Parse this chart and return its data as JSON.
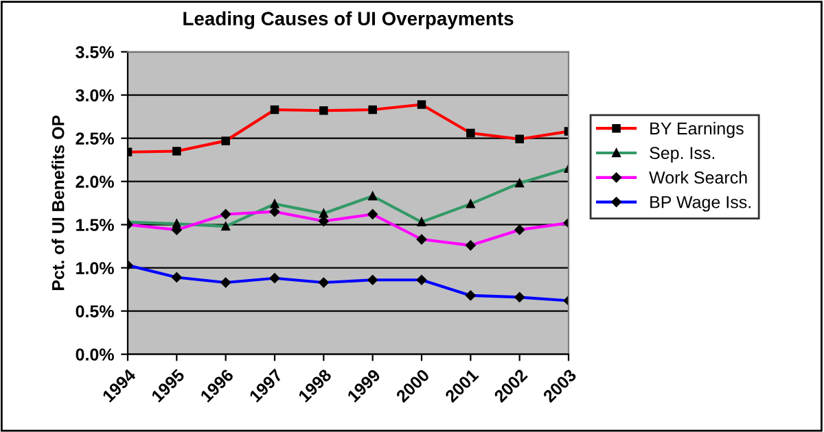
{
  "chart_data": {
    "type": "line",
    "title": "Leading Causes of UI Overpayments",
    "ylabel": "Pct. of UI Benefits OP",
    "categories": [
      "1994",
      "1995",
      "1996",
      "1997",
      "1998",
      "1999",
      "2000",
      "2001",
      "2002",
      "2003"
    ],
    "series": [
      {
        "name": "BY Earnings",
        "color": "#ff0000",
        "marker": "square",
        "values": [
          2.34,
          2.35,
          2.47,
          2.83,
          2.82,
          2.83,
          2.89,
          2.56,
          2.49,
          2.58
        ]
      },
      {
        "name": "Sep. Iss.",
        "color": "#339966",
        "marker": "triangle",
        "values": [
          1.53,
          1.51,
          1.48,
          1.74,
          1.63,
          1.83,
          1.53,
          1.74,
          1.98,
          2.15
        ]
      },
      {
        "name": "Work Search",
        "color": "#ff00ff",
        "marker": "diamond",
        "values": [
          1.5,
          1.44,
          1.62,
          1.65,
          1.54,
          1.62,
          1.33,
          1.26,
          1.44,
          1.52
        ]
      },
      {
        "name": "BP Wage Iss.",
        "color": "#0000ff",
        "marker": "diamond",
        "values": [
          1.03,
          0.89,
          0.83,
          0.88,
          0.83,
          0.86,
          0.86,
          0.68,
          0.66,
          0.62
        ]
      }
    ],
    "ylim": [
      0,
      3.5
    ],
    "yticks": [
      {
        "value": 0,
        "label": "0.0%"
      },
      {
        "value": 0.5,
        "label": "0.5%"
      },
      {
        "value": 1.0,
        "label": "1.0%"
      },
      {
        "value": 1.5,
        "label": "1.5%"
      },
      {
        "value": 2.0,
        "label": "2.0%"
      },
      {
        "value": 2.5,
        "label": "2.5%"
      },
      {
        "value": 3.0,
        "label": "3.0%"
      },
      {
        "value": 3.5,
        "label": "3.5%"
      }
    ],
    "grid": "y",
    "legend": "right",
    "line_style": "solid"
  }
}
